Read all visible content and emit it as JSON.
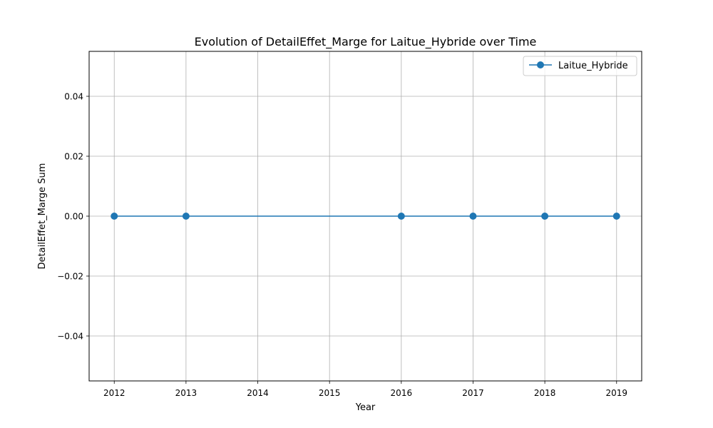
{
  "chart_data": {
    "type": "line",
    "title": "Evolution of DetailEffet_Marge for Laitue_Hybride over Time",
    "xlabel": "Year",
    "ylabel": "DetailEffet_Marge Sum",
    "xlim": [
      2011.65,
      2019.35
    ],
    "ylim": [
      -0.055,
      0.055
    ],
    "x_ticks": [
      2012,
      2013,
      2014,
      2015,
      2016,
      2017,
      2018,
      2019
    ],
    "y_ticks": [
      -0.04,
      -0.02,
      0.0,
      0.02,
      0.04
    ],
    "y_tick_labels": [
      "−0.04",
      "−0.02",
      "0.00",
      "0.02",
      "0.04"
    ],
    "grid": true,
    "legend_position": "top-right",
    "series": [
      {
        "name": "Laitue_Hybride",
        "color": "#1f77b4",
        "marker": "circle",
        "x": [
          2012,
          2013,
          2016,
          2017,
          2018,
          2019
        ],
        "y": [
          0,
          0,
          0,
          0,
          0,
          0
        ]
      }
    ]
  }
}
